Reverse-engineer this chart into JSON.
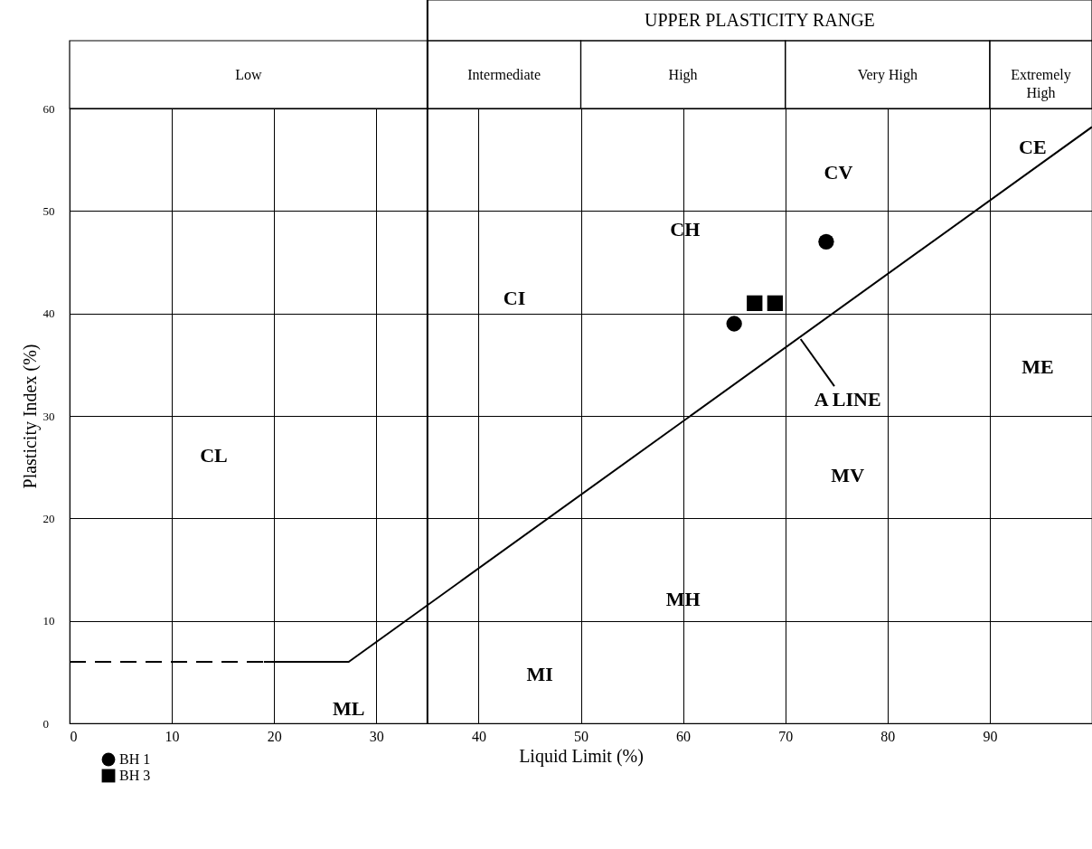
{
  "chart_data": {
    "type": "scatter",
    "xlabel": "Liquid Limit (%)",
    "ylabel": "Plasticity Index (%)",
    "xlim": [
      0,
      100
    ],
    "ylim": [
      0,
      60
    ],
    "xticks": [
      0,
      10,
      20,
      30,
      40,
      50,
      60,
      70,
      80,
      90
    ],
    "yticks": [
      0,
      10,
      20,
      30,
      40,
      50,
      60
    ],
    "grid": true,
    "legend": "bottom left",
    "series": [
      {
        "name": "BH 1",
        "marker": "circle",
        "color": "#000000",
        "x": [
          65,
          74
        ],
        "values": [
          39,
          47
        ]
      },
      {
        "name": "BH 3",
        "marker": "square",
        "color": "#000000",
        "x": [
          67,
          69
        ],
        "values": [
          41,
          41
        ]
      },
      {
        "type": "line",
        "line_style": "dashed",
        "color": "#000000",
        "x": [
          0,
          19
        ],
        "values": [
          6,
          6
        ]
      },
      {
        "type": "line",
        "line_style": "solid",
        "color": "#000000",
        "x": [
          19,
          27.3,
          100
        ],
        "values": [
          6,
          6,
          58.2
        ]
      }
    ],
    "ref_lines": [
      {
        "axis": "x",
        "value": 35
      }
    ],
    "annotations": [
      "UPPER PLASTICITY RANGE",
      "Low",
      "Intermediate",
      "High",
      "Very High",
      "Extremely High",
      "CL",
      "ML",
      "MI",
      "CI",
      "MH",
      "CH",
      "CV",
      "MV",
      "CE",
      "ME",
      {
        "text": "A LINE",
        "x": 71.5,
        "y": 37.5
      }
    ]
  }
}
